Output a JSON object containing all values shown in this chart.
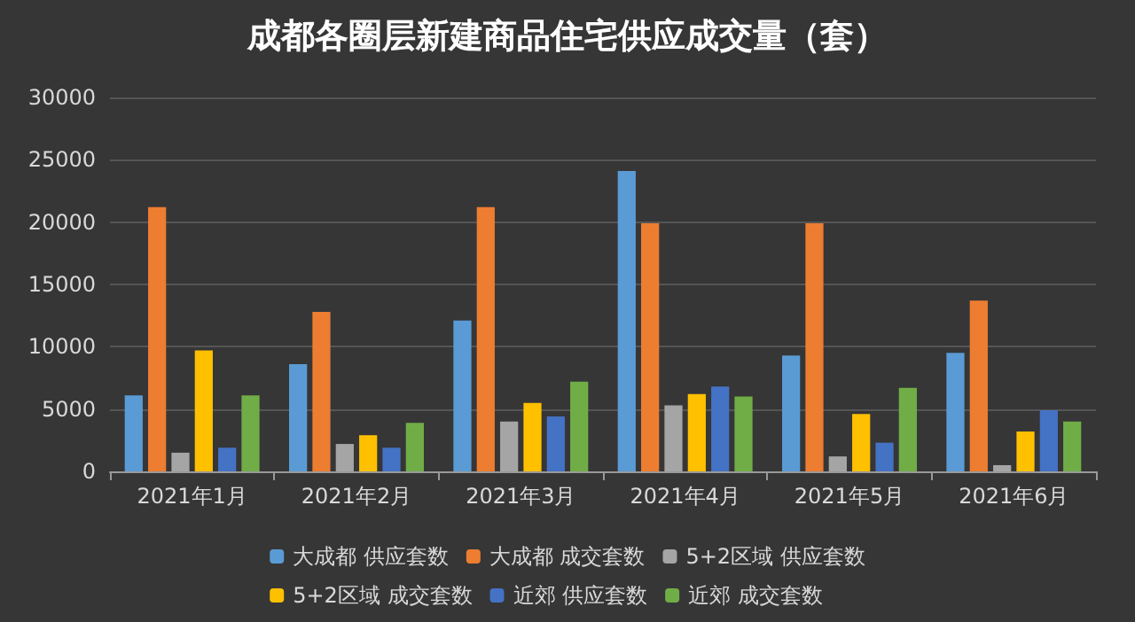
{
  "chart_data": {
    "type": "bar",
    "title": "成都各圈层新建商品住宅供应成交量（套）",
    "categories": [
      "2021年1月",
      "2021年2月",
      "2021年3月",
      "2021年4月",
      "2021年5月",
      "2021年6月"
    ],
    "series": [
      {
        "name": "大成都 供应套数",
        "color": "#5b9bd5",
        "values": [
          6100,
          8600,
          12100,
          24100,
          9300,
          9500
        ]
      },
      {
        "name": "大成都 成交套数",
        "color": "#ed7d31",
        "values": [
          21200,
          12800,
          21200,
          19900,
          19900,
          13700
        ]
      },
      {
        "name": "5+2区域 供应套数",
        "color": "#a5a5a5",
        "values": [
          1500,
          2200,
          4000,
          5300,
          1200,
          500
        ]
      },
      {
        "name": "5+2区域 成交套数",
        "color": "#ffc000",
        "values": [
          9700,
          2900,
          5500,
          6200,
          4600,
          3200
        ]
      },
      {
        "name": "近郊 供应套数",
        "color": "#4472c4",
        "values": [
          1900,
          1900,
          4400,
          6800,
          2300,
          4900
        ]
      },
      {
        "name": "近郊 成交套数",
        "color": "#70ad47",
        "values": [
          6100,
          3900,
          7200,
          6000,
          6700,
          4000
        ]
      }
    ],
    "ylim": [
      0,
      30000
    ],
    "yticks": [
      0,
      5000,
      10000,
      15000,
      20000,
      25000,
      30000
    ],
    "grid": "y",
    "legend": "bottom"
  }
}
